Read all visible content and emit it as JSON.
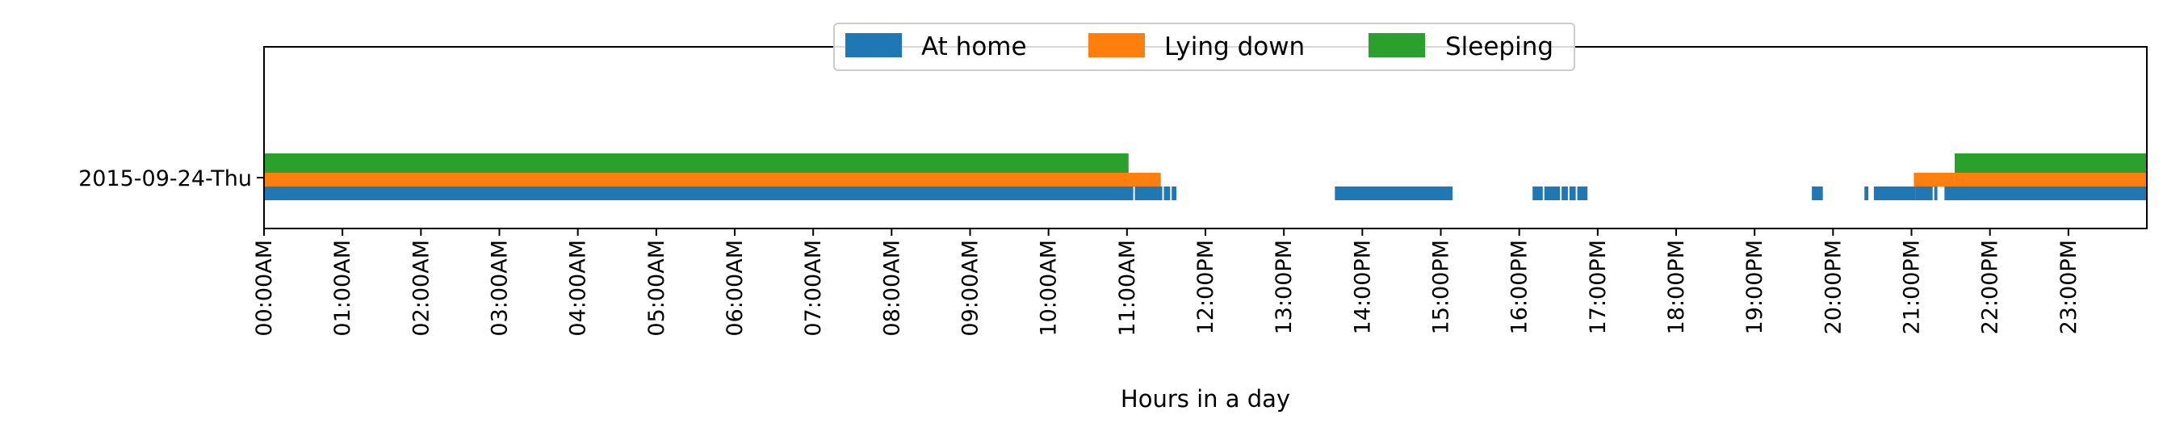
{
  "chart_data": {
    "type": "timeline",
    "xlabel": "Hours in a day",
    "xlim": [
      0,
      24
    ],
    "row_label": "2015-09-24-Thu",
    "tick_labels": [
      "00:00AM",
      "01:00AM",
      "02:00AM",
      "03:00AM",
      "04:00AM",
      "05:00AM",
      "06:00AM",
      "07:00AM",
      "08:00AM",
      "09:00AM",
      "10:00AM",
      "11:00AM",
      "12:00PM",
      "13:00PM",
      "14:00PM",
      "15:00PM",
      "16:00PM",
      "17:00PM",
      "18:00PM",
      "19:00PM",
      "20:00PM",
      "21:00PM",
      "22:00PM",
      "23:00PM"
    ],
    "legend_position": "top-center",
    "series": [
      {
        "name": "At home",
        "color": "#1f77b4",
        "intervals": [
          [
            0.0,
            11.08
          ],
          [
            11.1,
            11.45
          ],
          [
            11.47,
            11.55
          ],
          [
            11.57,
            11.63
          ],
          [
            13.65,
            15.15
          ],
          [
            16.17,
            16.3
          ],
          [
            16.32,
            16.52
          ],
          [
            16.54,
            16.62
          ],
          [
            16.64,
            16.72
          ],
          [
            16.74,
            16.87
          ],
          [
            19.73,
            19.87
          ],
          [
            20.4,
            20.45
          ],
          [
            20.52,
            21.05
          ],
          [
            21.05,
            21.27
          ],
          [
            21.29,
            21.33
          ],
          [
            21.42,
            24.0
          ]
        ]
      },
      {
        "name": "Lying down",
        "color": "#ff7f0e",
        "intervals": [
          [
            0.0,
            11.43
          ],
          [
            21.03,
            21.55
          ],
          [
            21.55,
            24.0
          ]
        ]
      },
      {
        "name": "Sleeping",
        "color": "#2ca02c",
        "intervals": [
          [
            0.0,
            11.02
          ],
          [
            21.55,
            24.0
          ]
        ]
      }
    ]
  }
}
